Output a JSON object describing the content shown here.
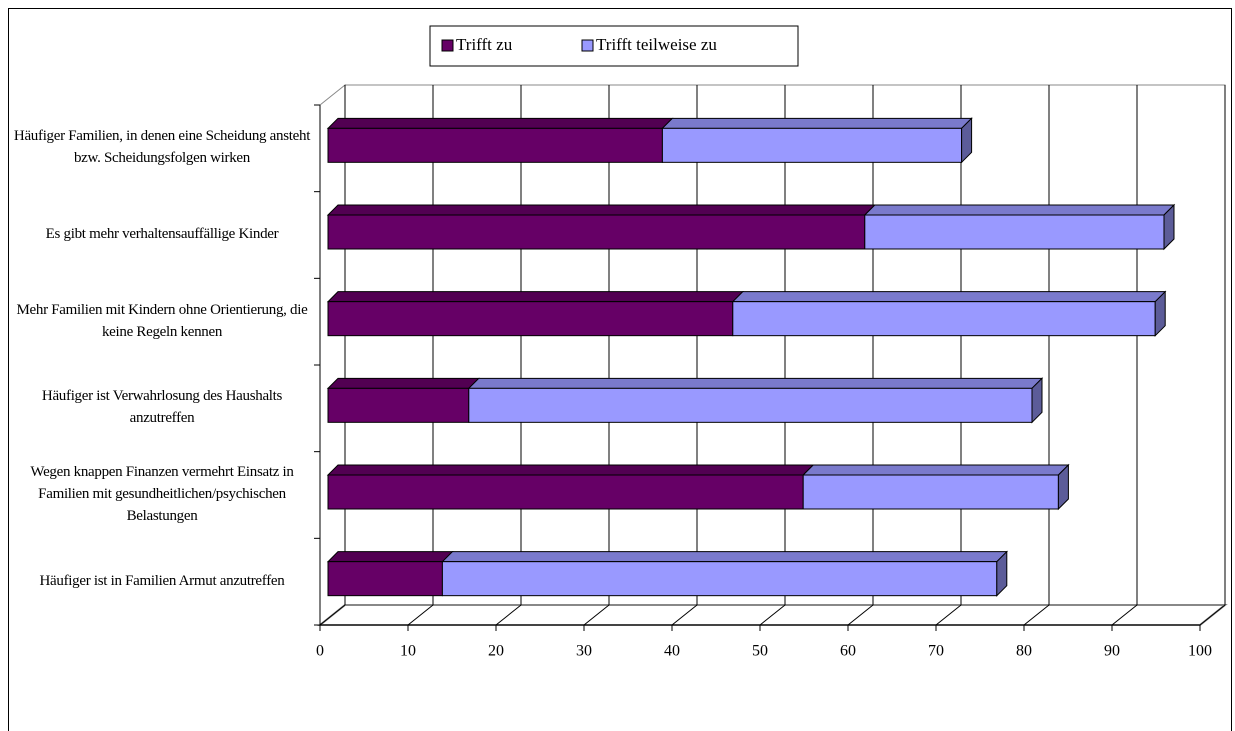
{
  "chart_data": {
    "type": "bar3d-stacked-horizontal",
    "categories": [
      "Häufiger Familien, in denen eine Scheidung ansteht bzw. Scheidungsfolgen wirken",
      "Es gibt mehr verhaltensauffällige Kinder",
      "Mehr Familien mit Kindern ohne Orientierung, die keine Regeln kennen",
      "Häufiger ist Verwahrlosung des Haushalts anzutreffen",
      "Wegen knappen Finanzen vermehrt Einsatz in Familien mit gesundheitlichen/psychischen Belastungen",
      "Häufiger ist in Familien Armut anzutreffen"
    ],
    "series": [
      {
        "name": "Trifft zu",
        "color": "#660066",
        "values": [
          38,
          61,
          46,
          16,
          54,
          13
        ]
      },
      {
        "name": "Trifft teilweise zu",
        "color": "#9999ff",
        "values": [
          34,
          34,
          48,
          64,
          29,
          63
        ]
      }
    ],
    "xlim": [
      0,
      100
    ],
    "xticks": [
      0,
      10,
      20,
      30,
      40,
      50,
      60,
      70,
      80,
      90,
      100
    ],
    "grid": true,
    "legend": "top"
  }
}
